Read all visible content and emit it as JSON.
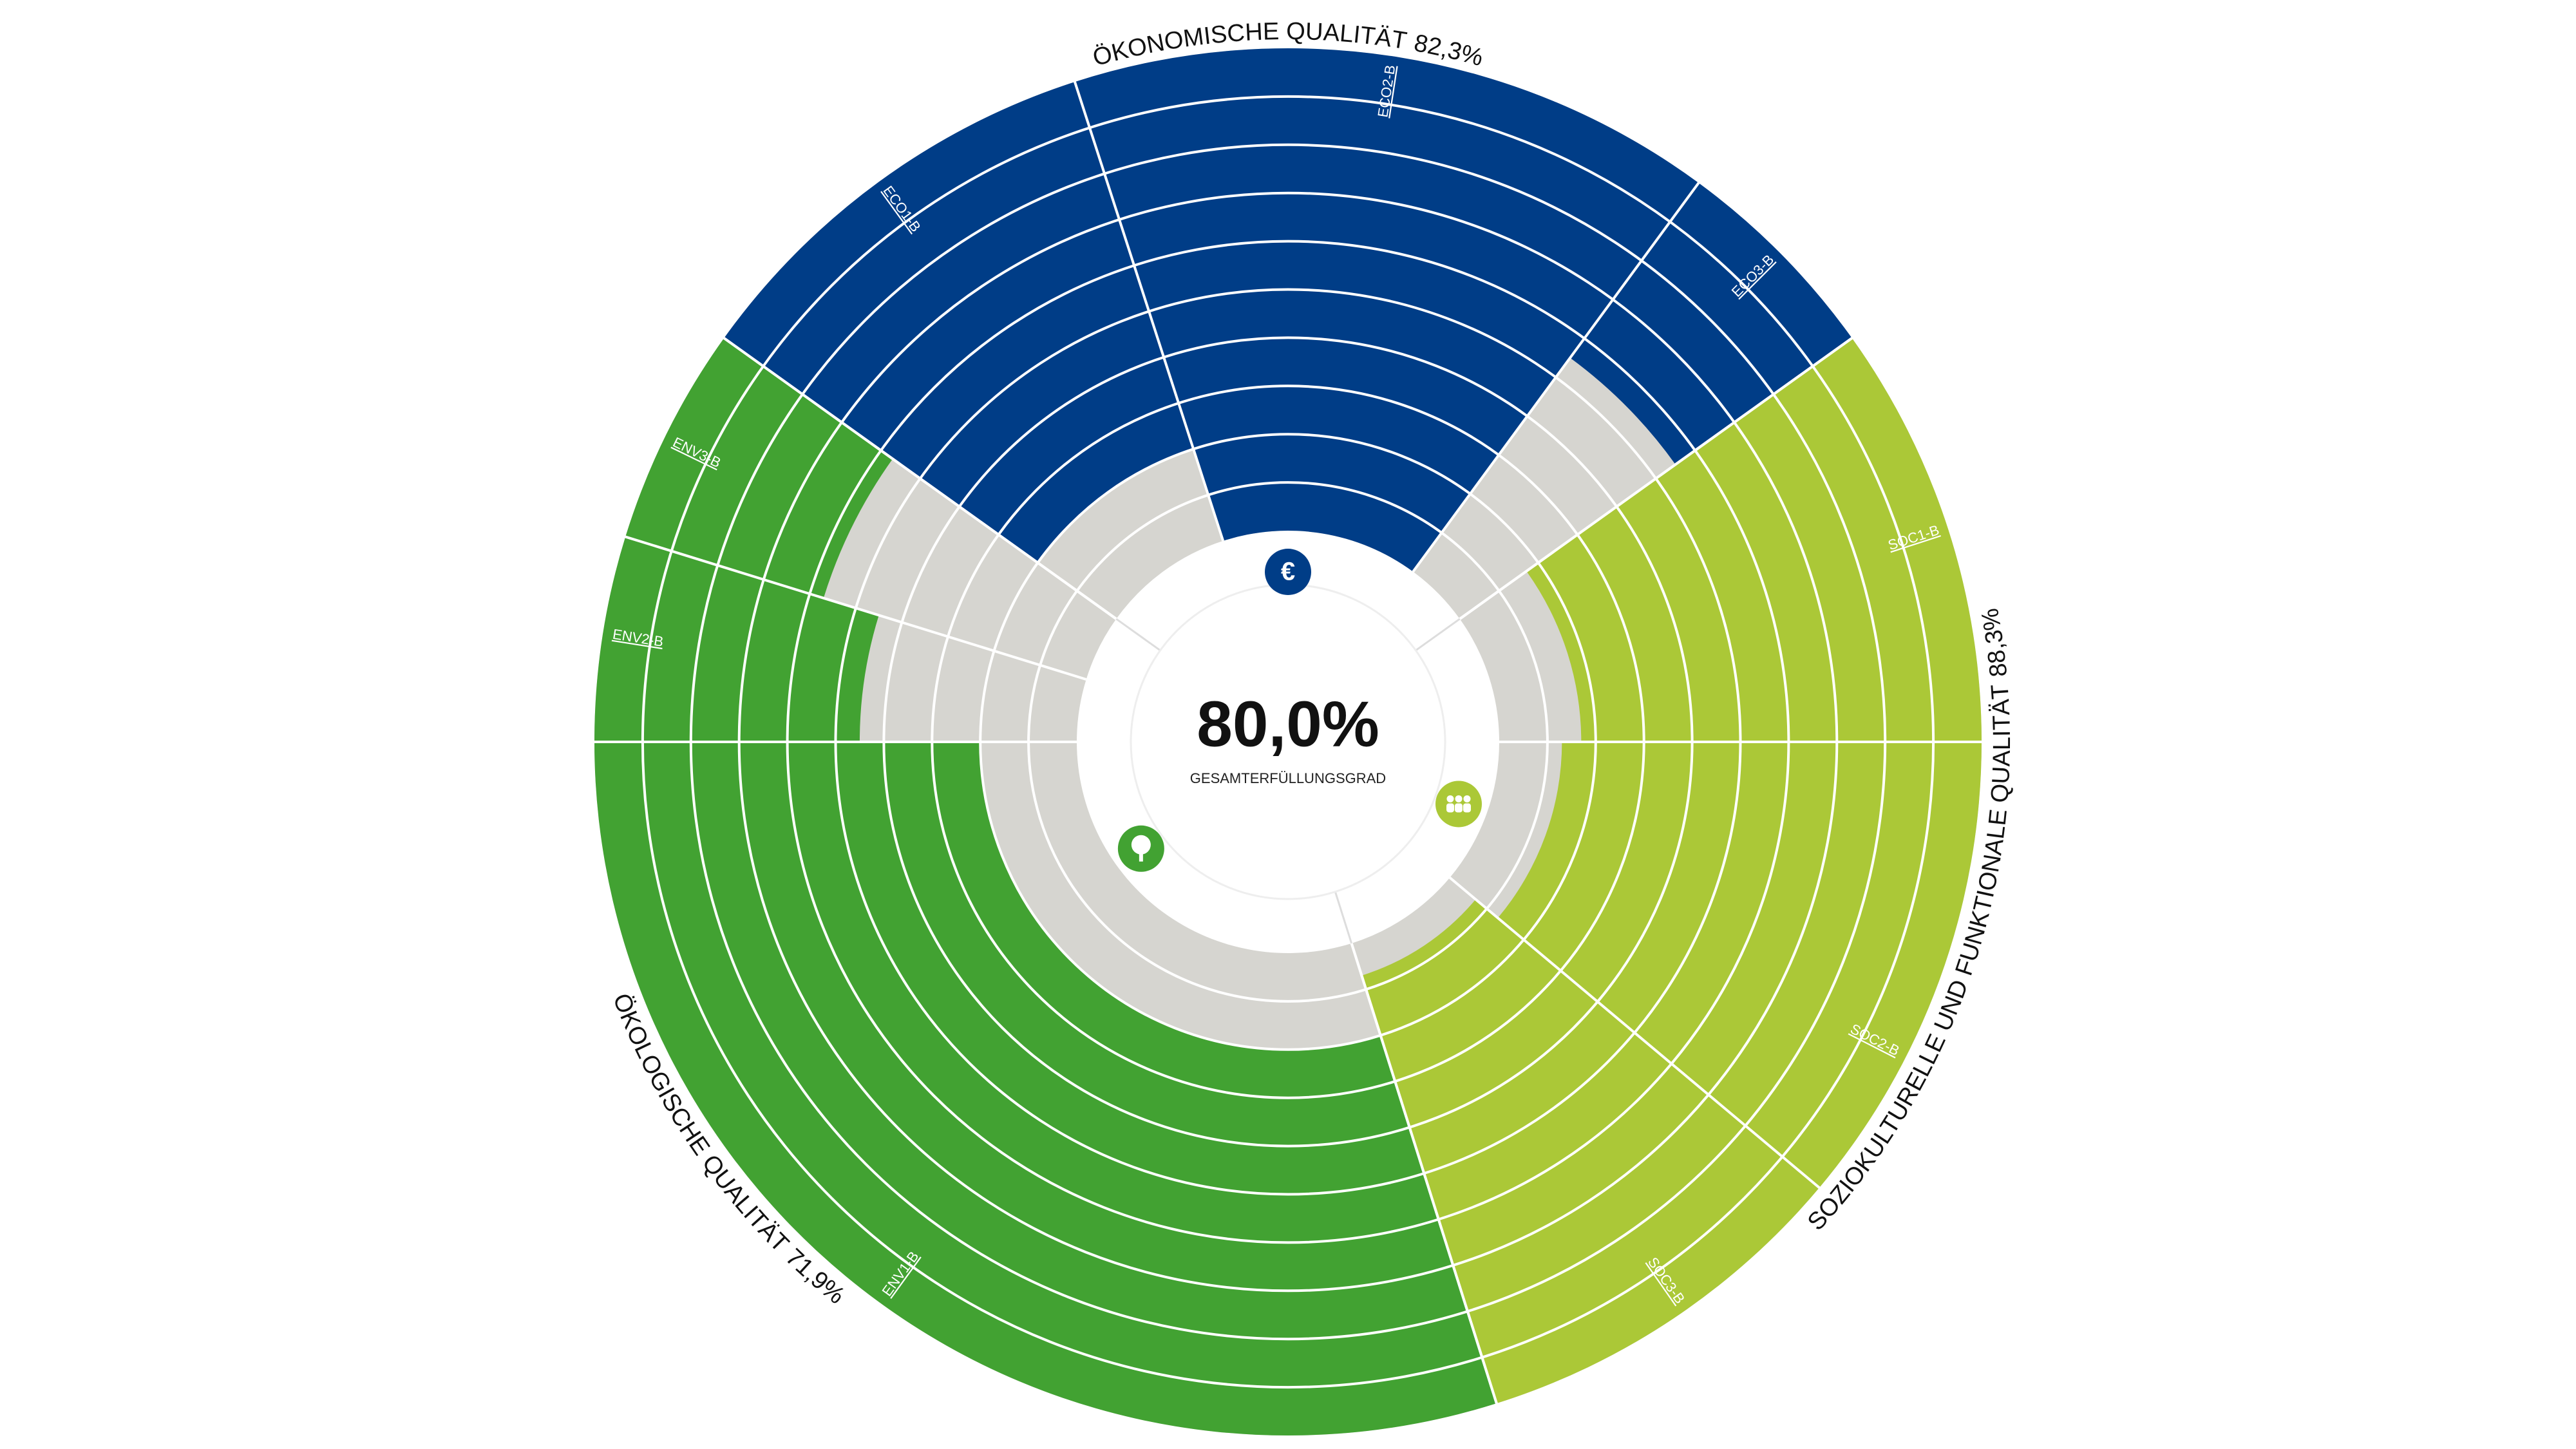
{
  "chart_data": {
    "type": "radial",
    "center_value": {
      "value": 80.0,
      "label": "80,0%"
    },
    "center_label": "GESAMTERFÜLLUNGSGRAD",
    "ylim": [
      0,
      100
    ],
    "empty_color": "#d6d5d0",
    "groups": [
      {
        "name": "ÖKONOMISCHE QUALITÄT",
        "score": {
          "value": 82.3,
          "label": "82,3%"
        },
        "color": "#003d87",
        "icon": "€",
        "criteria": [
          "ECO1-B",
          "ECO2-B",
          "ECO3-B"
        ],
        "values": [
          80,
          100,
          45
        ]
      },
      {
        "name": "SOZIOKULTURELLE UND FUNKTIONALE QUALITÄT",
        "score": {
          "value": 88.3,
          "label": "88,3%"
        },
        "color": "#abc837",
        "criteria": [
          "SOC1-B",
          "SOC2-B",
          "SOC3-B"
        ],
        "values": [
          83,
          87,
          93
        ]
      },
      {
        "name": "ÖKOLOGISCHE QUALITÄT",
        "score": {
          "value": 71.9,
          "label": "71,9%"
        },
        "color": "#42a232",
        "criteria": [
          "ENV1-B",
          "ENV2-B",
          "ENV3-B"
        ],
        "values": [
          80,
          55,
          43
        ]
      }
    ]
  }
}
